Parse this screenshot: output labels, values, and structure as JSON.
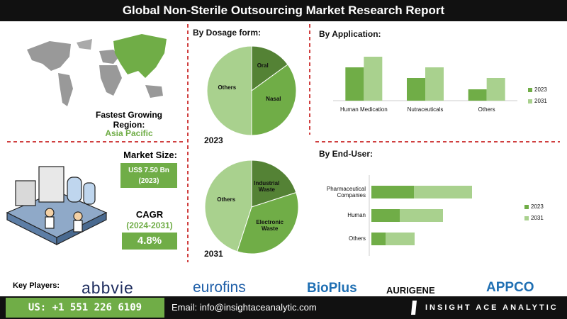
{
  "title": "Global Non-Sterile Outsourcing Market Research Report",
  "region": {
    "label": "Fastest Growing Region:",
    "value": "Asia Pacific"
  },
  "market_size": {
    "label": "Market Size:",
    "value": "US$ 7.50 Bn",
    "year": "(2023)"
  },
  "cagr": {
    "label": "CAGR",
    "period": "(2024-2031)",
    "value": "4.8%"
  },
  "key_players": {
    "label": "Key Players:",
    "names": [
      "abbvie",
      "eurofins",
      "BioPlus",
      "AURIGENE",
      "APPCO"
    ]
  },
  "contact": {
    "phone": "US: +1 551 226 6109",
    "email": "Email: info@insightaceanalytic.com",
    "brand": "INSIGHT ACE ANALYTIC"
  },
  "chart_data": [
    {
      "type": "pie",
      "title": "By Dosage form:",
      "subtitle": "2023",
      "categories": [
        "Oral",
        "Nasal",
        "Others"
      ],
      "values": [
        15,
        35,
        50
      ],
      "colors": [
        "#548235",
        "#70ad47",
        "#a9d18e"
      ]
    },
    {
      "type": "pie",
      "subtitle": "2031",
      "categories": [
        "Industrial Waste",
        "Electronic Waste",
        "Others"
      ],
      "values": [
        20,
        35,
        45
      ],
      "colors": [
        "#548235",
        "#70ad47",
        "#a9d18e"
      ]
    },
    {
      "type": "bar",
      "title": "By Application:",
      "categories": [
        "Human Medication",
        "Nutraceuticals",
        "Others"
      ],
      "series": [
        {
          "name": "2023",
          "color": "#70ad47",
          "values": [
            47,
            32,
            16
          ]
        },
        {
          "name": "2031",
          "color": "#a9d18e",
          "values": [
            62,
            47,
            32
          ]
        }
      ]
    },
    {
      "type": "bar",
      "title": "By End-User:",
      "orientation": "horizontal",
      "stacked": true,
      "categories": [
        "Pharmaceutical Companies",
        "Human",
        "Others"
      ],
      "series": [
        {
          "name": "2023",
          "color": "#70ad47",
          "values": [
            60,
            40,
            20
          ]
        },
        {
          "name": "2031",
          "color": "#a9d18e",
          "values": [
            82,
            61,
            41
          ]
        }
      ]
    }
  ]
}
